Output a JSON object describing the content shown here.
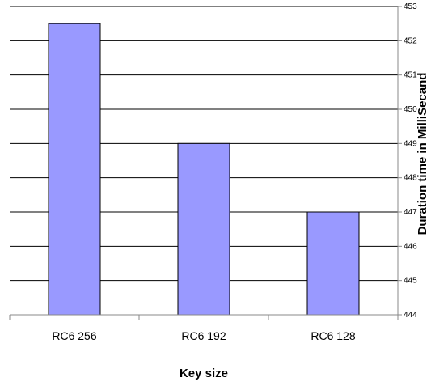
{
  "chart_data": {
    "type": "bar",
    "categories": [
      "RC6 256",
      "RC6 192",
      "RC6 128"
    ],
    "values": [
      452.5,
      449,
      447
    ],
    "y_tick_labels": [
      "444",
      "445",
      "446",
      "447",
      "448",
      "449",
      "450",
      "451",
      "452",
      "453"
    ],
    "xlabel": "Key size",
    "ylabel": "Duration time in MilliSecand",
    "ylim": [
      444,
      453
    ],
    "y_axis_side": "right",
    "grid": true,
    "legend": "none",
    "bar_color": "#9999ff",
    "bar_edge_color": "#000000"
  }
}
